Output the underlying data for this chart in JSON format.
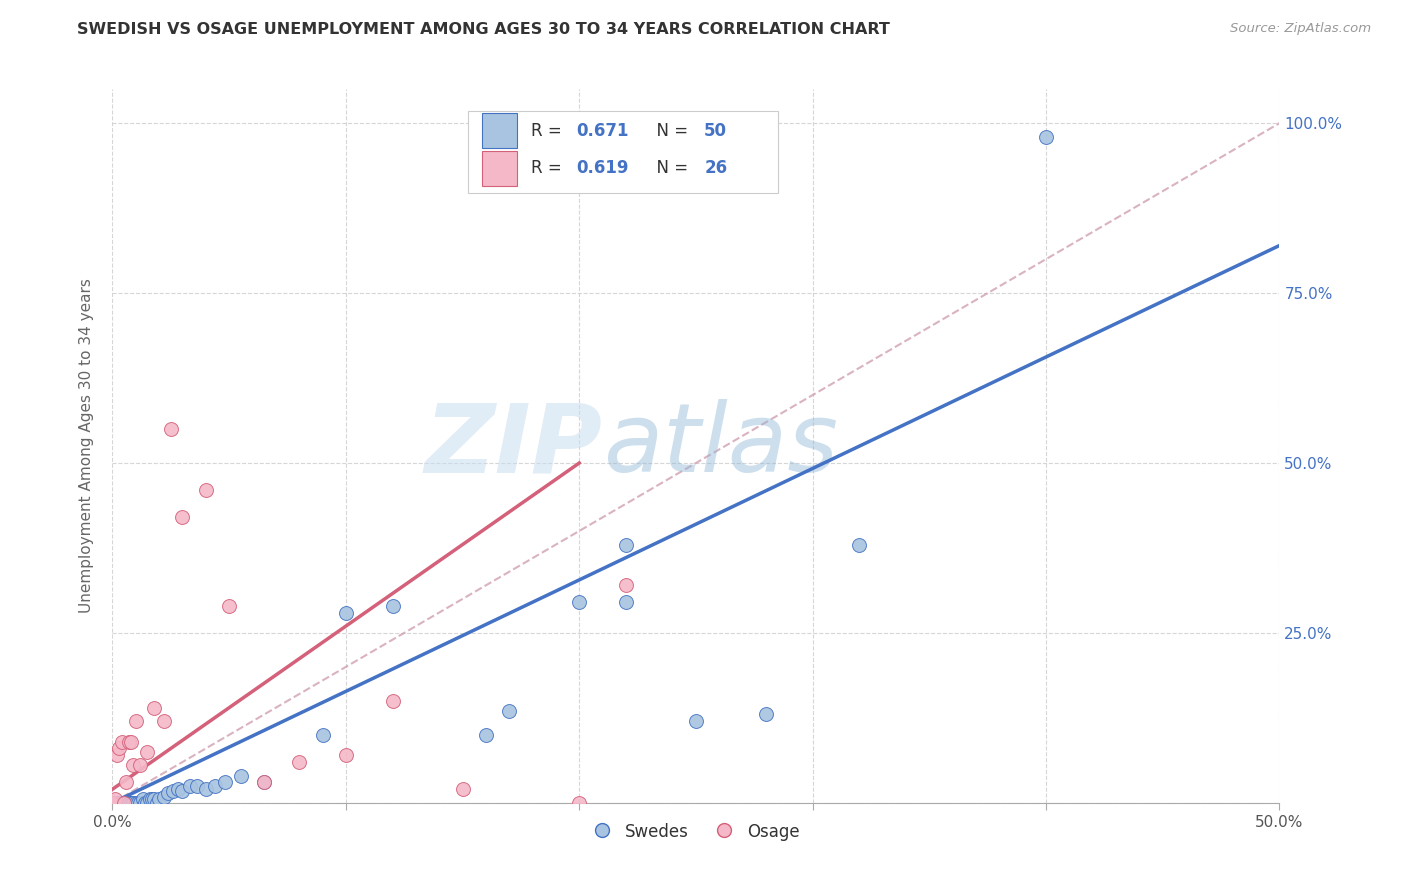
{
  "title": "SWEDISH VS OSAGE UNEMPLOYMENT AMONG AGES 30 TO 34 YEARS CORRELATION CHART",
  "source": "Source: ZipAtlas.com",
  "ylabel": "Unemployment Among Ages 30 to 34 years",
  "xlim": [
    0.0,
    0.5
  ],
  "ylim": [
    0.0,
    1.05
  ],
  "watermark_zip": "ZIP",
  "watermark_atlas": "atlas",
  "swedes_color": "#a8c4e0",
  "swedes_edge_color": "#4472c4",
  "osage_color": "#f4b8c8",
  "osage_edge_color": "#d4607a",
  "swedes_line_color": "#4472c4",
  "osage_line_color": "#d4607a",
  "dashed_line_color": "#d0a0b0",
  "legend_r_color": "#333333",
  "legend_n_color": "#4472c4",
  "right_tick_color": "#4472c4",
  "swedes_x": [
    0.0,
    0.002,
    0.003,
    0.004,
    0.004,
    0.005,
    0.005,
    0.006,
    0.006,
    0.007,
    0.007,
    0.008,
    0.008,
    0.009,
    0.009,
    0.01,
    0.011,
    0.012,
    0.013,
    0.014,
    0.015,
    0.016,
    0.017,
    0.018,
    0.019,
    0.02,
    0.022,
    0.024,
    0.026,
    0.028,
    0.03,
    0.033,
    0.036,
    0.04,
    0.044,
    0.048,
    0.055,
    0.065,
    0.09,
    0.1,
    0.12,
    0.16,
    0.2,
    0.22,
    0.25,
    0.28,
    0.32,
    0.4,
    0.22,
    0.17
  ],
  "swedes_y": [
    0.0,
    0.0,
    0.0,
    0.0,
    0.0,
    0.0,
    0.0,
    0.0,
    0.0,
    0.0,
    0.0,
    0.0,
    0.0,
    0.0,
    0.0,
    0.0,
    0.0,
    0.0,
    0.005,
    0.0,
    0.0,
    0.005,
    0.005,
    0.005,
    0.0,
    0.005,
    0.008,
    0.015,
    0.018,
    0.02,
    0.018,
    0.025,
    0.025,
    0.02,
    0.025,
    0.03,
    0.04,
    0.03,
    0.1,
    0.28,
    0.29,
    0.1,
    0.295,
    0.295,
    0.12,
    0.13,
    0.38,
    0.98,
    0.38,
    0.135
  ],
  "osage_x": [
    0.0,
    0.001,
    0.002,
    0.003,
    0.004,
    0.005,
    0.006,
    0.007,
    0.008,
    0.009,
    0.01,
    0.012,
    0.015,
    0.018,
    0.022,
    0.025,
    0.03,
    0.04,
    0.05,
    0.065,
    0.08,
    0.1,
    0.12,
    0.15,
    0.2,
    0.22
  ],
  "osage_y": [
    0.0,
    0.005,
    0.07,
    0.08,
    0.09,
    0.0,
    0.03,
    0.09,
    0.09,
    0.055,
    0.12,
    0.055,
    0.075,
    0.14,
    0.12,
    0.55,
    0.42,
    0.46,
    0.29,
    0.03,
    0.06,
    0.07,
    0.15,
    0.02,
    0.0,
    0.32
  ],
  "swedes_line_x": [
    0.0,
    0.5
  ],
  "swedes_line_y": [
    0.0,
    0.82
  ],
  "osage_line_x": [
    0.0,
    0.2
  ],
  "osage_line_y": [
    0.02,
    0.5
  ],
  "dashed_line_x": [
    0.0,
    0.5
  ],
  "dashed_line_y": [
    0.0,
    1.0
  ],
  "xtick_positions": [
    0.0,
    0.1,
    0.2,
    0.3,
    0.4,
    0.5
  ],
  "xtick_labels": [
    "0.0%",
    "",
    "",
    "",
    "",
    "50.0%"
  ],
  "ytick_positions": [
    0.0,
    0.25,
    0.5,
    0.75,
    1.0
  ],
  "ytick_labels": [
    "",
    "25.0%",
    "50.0%",
    "75.0%",
    "100.0%"
  ]
}
